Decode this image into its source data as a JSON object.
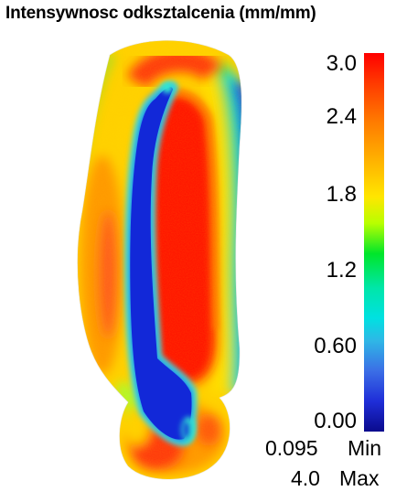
{
  "title": "Intensywnosc odksztalcenia (mm/mm)",
  "colorbar": {
    "ticks": [
      "3.0",
      "2.4",
      "1.8",
      "1.2",
      "0.60",
      "0.00"
    ],
    "min_value": "0.095",
    "min_label": "Min",
    "max_value": "4.0",
    "max_label": "Max"
  },
  "colors": {
    "high": "#ff0000",
    "mid": "#ffff00",
    "low": "#0a0a8c"
  }
}
